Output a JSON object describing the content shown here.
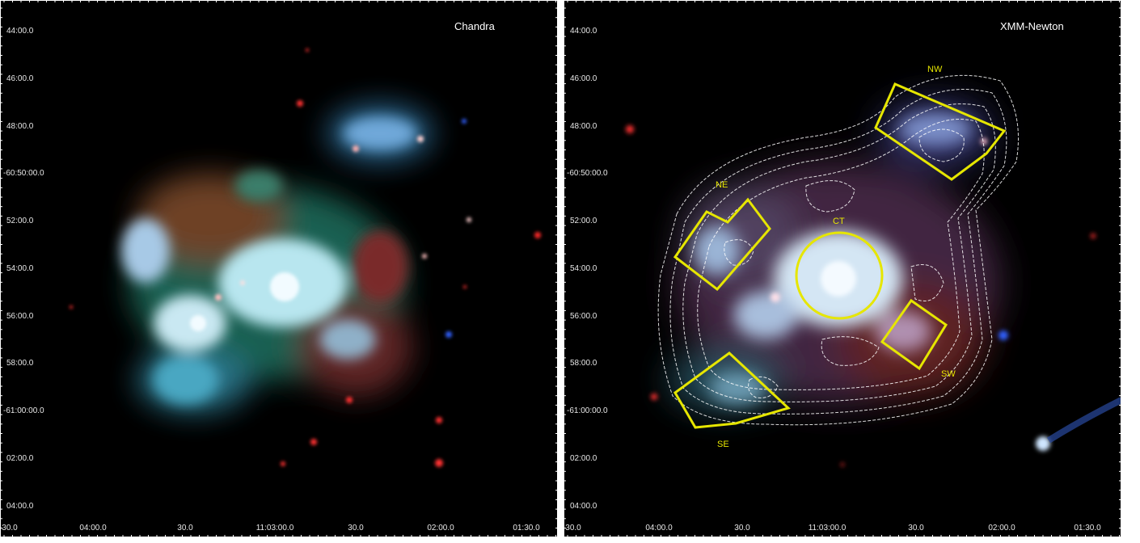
{
  "left": {
    "title": "Chandra",
    "y_ticks": [
      "44:00.0",
      "46:00.0",
      "48:00.0",
      "-60:50:00.0",
      "52:00.0",
      "54:00.0",
      "56:00.0",
      "58:00.0",
      "-61:00:00.0",
      "02:00.0",
      "04:00.0"
    ],
    "x_ticks": [
      "30.0",
      "04:00.0",
      "30.0",
      "11:03:00.0",
      "30.0",
      "02:00.0",
      "01:30.0"
    ]
  },
  "right": {
    "title": "XMM-Newton",
    "y_ticks": [
      "44:00.0",
      "46:00.0",
      "48:00.0",
      "-60:50:00.0",
      "52:00.0",
      "54:00.0",
      "56:00.0",
      "58:00.0",
      "-61:00:00.0",
      "02:00.0",
      "04:00.0"
    ],
    "x_ticks": [
      "30.0",
      "04:00.0",
      "30.0",
      "11:03:00.0",
      "30.0",
      "02:00.0",
      "01:30.0"
    ],
    "regions": {
      "nw": "NW",
      "ne": "NE",
      "ct": "CT",
      "sw": "SW",
      "se": "SE"
    }
  },
  "colors": {
    "region": "#e6e600",
    "contour": "#ffffff",
    "background": "#000000"
  }
}
